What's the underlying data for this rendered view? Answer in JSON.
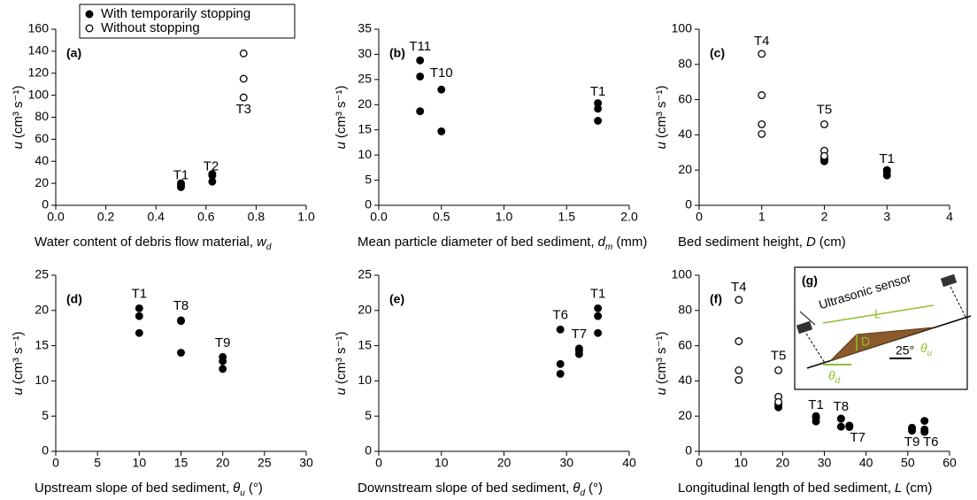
{
  "chart_data": [
    {
      "type": "scatter",
      "panel": "(a)",
      "xlabel": {
        "text": "Water content of debris flow material,",
        "var": "w",
        "sub": "d"
      },
      "ylabel": {
        "var": "u",
        "unit": "(cm³ s⁻¹)"
      },
      "xlim": [
        0,
        1
      ],
      "xticks": [
        {
          "value": 0,
          "label": "0.0"
        },
        {
          "value": 0.2,
          "label": "0.2"
        },
        {
          "value": 0.4,
          "label": "0.4"
        },
        {
          "value": 0.6,
          "label": "0.6"
        },
        {
          "value": 0.8,
          "label": "0.8"
        },
        {
          "value": 1,
          "label": "1.0"
        }
      ],
      "ylim": [
        0,
        160
      ],
      "yticks": [
        0,
        20,
        40,
        60,
        80,
        100,
        120,
        140,
        160
      ],
      "legend": "top",
      "series": [
        {
          "name": "With temporarily stopping",
          "marker": "filled",
          "color": "#000000",
          "x": [
            0.5,
            0.5,
            0.5,
            0.625,
            0.625,
            0.625
          ],
          "values": [
            20,
            18,
            16.5,
            28.5,
            27,
            21.5
          ]
        },
        {
          "name": "Without stopping",
          "marker": "open",
          "color": "#000000",
          "x": [
            0.75,
            0.75,
            0.75
          ],
          "values": [
            138,
            115,
            98
          ]
        }
      ],
      "annotations": [
        {
          "text": "T1",
          "x": 0.5,
          "y": 27
        },
        {
          "text": "T2",
          "x": 0.62,
          "y": 35
        },
        {
          "text": "T3",
          "x": 0.75,
          "y": 87
        }
      ]
    },
    {
      "type": "scatter",
      "panel": "(b)",
      "xlabel": {
        "text": "Mean particle diameter of bed sediment,",
        "var": "d",
        "sub": "m",
        "unit": "(mm)"
      },
      "ylabel": {
        "var": "u",
        "unit": "(cm³ s⁻¹)"
      },
      "xlim": [
        0,
        2
      ],
      "xticks": [
        {
          "value": 0,
          "label": "0.0"
        },
        {
          "value": 0.5,
          "label": "0.5"
        },
        {
          "value": 1,
          "label": "1.0"
        },
        {
          "value": 1.5,
          "label": "1.5"
        },
        {
          "value": 2,
          "label": "2.0"
        }
      ],
      "ylim": [
        0,
        35
      ],
      "yticks": [
        0,
        5,
        10,
        15,
        20,
        25,
        30,
        35
      ],
      "series": [
        {
          "marker": "filled",
          "color": "#000000",
          "x": [
            0.33,
            0.33,
            0.33,
            0.5,
            0.5,
            1.75,
            1.75,
            1.75
          ],
          "values": [
            28.8,
            25.6,
            18.7,
            23,
            14.7,
            20.3,
            19.2,
            16.8
          ]
        }
      ],
      "annotations": [
        {
          "text": "T11",
          "x": 0.33,
          "y": 31.5
        },
        {
          "text": "T10",
          "x": 0.5,
          "y": 26.2
        },
        {
          "text": "T1",
          "x": 1.75,
          "y": 22.5
        }
      ]
    },
    {
      "type": "scatter",
      "panel": "(c)",
      "xlabel": {
        "text": "Bed sediment height,",
        "var": "D",
        "unit": "(cm)"
      },
      "ylabel": {
        "var": "u",
        "unit": "(cm³ s⁻¹)"
      },
      "xlim": [
        0,
        4
      ],
      "xticks": [
        0,
        1,
        2,
        3,
        4
      ],
      "ylim": [
        0,
        100
      ],
      "yticks": [
        0,
        20,
        40,
        60,
        80,
        100
      ],
      "series": [
        {
          "marker": "filled",
          "color": "#000000",
          "x": [
            2,
            2,
            2,
            3,
            3,
            3
          ],
          "values": [
            27,
            26,
            25,
            20,
            19,
            17
          ]
        },
        {
          "marker": "open",
          "color": "#000000",
          "x": [
            1,
            1,
            1,
            1,
            2,
            2,
            2
          ],
          "values": [
            86,
            62.5,
            46,
            40.5,
            46,
            31,
            28
          ]
        }
      ],
      "annotations": [
        {
          "text": "T4",
          "x": 1,
          "y": 93
        },
        {
          "text": "T5",
          "x": 2,
          "y": 54
        },
        {
          "text": "T1",
          "x": 3,
          "y": 26
        }
      ]
    },
    {
      "type": "scatter",
      "panel": "(d)",
      "xlabel": {
        "text": "Upstream slope of bed sediment,",
        "var": "θ",
        "sub": "u",
        "unit": "(°)"
      },
      "ylabel": {
        "var": "u",
        "unit": "(cm³ s⁻¹)"
      },
      "xlim": [
        0,
        30
      ],
      "xticks": [
        0,
        5,
        10,
        15,
        20,
        25,
        30
      ],
      "ylim": [
        0,
        25
      ],
      "yticks": [
        0,
        5,
        10,
        15,
        20,
        25
      ],
      "series": [
        {
          "marker": "filled",
          "color": "#000000",
          "x": [
            10,
            10,
            10,
            15,
            15,
            15,
            20,
            20,
            20
          ],
          "values": [
            20.3,
            19.2,
            16.8,
            18.6,
            18.5,
            14,
            13.4,
            12.8,
            11.7
          ]
        }
      ],
      "annotations": [
        {
          "text": "T1",
          "x": 10,
          "y": 22.3
        },
        {
          "text": "T8",
          "x": 15,
          "y": 20.6
        },
        {
          "text": "T9",
          "x": 20,
          "y": 15.3
        }
      ]
    },
    {
      "type": "scatter",
      "panel": "(e)",
      "xlabel": {
        "text": "Downstream slope of bed sediment,",
        "var": "θ",
        "sub": "d",
        "unit": "(°)"
      },
      "ylabel": {
        "var": "u",
        "unit": "(cm³ s⁻¹)"
      },
      "xlim": [
        0,
        40
      ],
      "xticks": [
        0,
        10,
        20,
        30,
        40
      ],
      "ylim": [
        0,
        25
      ],
      "yticks": [
        0,
        5,
        10,
        15,
        20,
        25
      ],
      "series": [
        {
          "marker": "filled",
          "color": "#000000",
          "x": [
            29,
            29,
            29,
            32,
            32,
            32,
            35,
            35,
            35
          ],
          "values": [
            17.3,
            12.4,
            11,
            14.6,
            14.3,
            13.8,
            20.3,
            19.2,
            16.8
          ]
        }
      ],
      "annotations": [
        {
          "text": "T6",
          "x": 29,
          "y": 19.3
        },
        {
          "text": "T7",
          "x": 32,
          "y": 16.6
        },
        {
          "text": "T1",
          "x": 35,
          "y": 22.3
        }
      ]
    },
    {
      "type": "scatter",
      "panel": "(f)",
      "xlabel": {
        "text": "Longitudinal length of bed sediment,",
        "var": "L",
        "unit": "(cm)"
      },
      "ylabel": {
        "var": "u",
        "unit": "(cm³ s⁻¹)"
      },
      "xlim": [
        0,
        60
      ],
      "xticks": [
        0,
        10,
        20,
        30,
        40,
        50,
        60
      ],
      "ylim": [
        0,
        100
      ],
      "yticks": [
        0,
        20,
        40,
        60,
        80,
        100
      ],
      "series": [
        {
          "marker": "filled",
          "color": "#000000",
          "x": [
            19,
            19,
            19,
            28,
            28,
            28,
            34,
            34,
            34,
            36,
            36,
            36,
            51,
            51,
            51,
            54,
            54,
            54
          ],
          "values": [
            27,
            26,
            25,
            20,
            19,
            17,
            18.6,
            18.5,
            14,
            14.6,
            14.3,
            13.8,
            13.4,
            12.8,
            11.7,
            17.3,
            12.4,
            11
          ]
        },
        {
          "marker": "open",
          "color": "#000000",
          "x": [
            9.5,
            9.5,
            9.5,
            9.5,
            19,
            19,
            19
          ],
          "values": [
            86,
            62.5,
            46,
            40.5,
            46,
            31,
            28
          ]
        }
      ],
      "annotations": [
        {
          "text": "T4",
          "x": 9.5,
          "y": 93
        },
        {
          "text": "T5",
          "x": 19,
          "y": 54
        },
        {
          "text": "T1",
          "x": 28,
          "y": 26
        },
        {
          "text": "T8",
          "x": 34,
          "y": 25
        },
        {
          "text": "T7",
          "x": 38,
          "y": 7.5
        },
        {
          "text": "T9",
          "x": 51,
          "y": 5
        },
        {
          "text": "T6",
          "x": 55.5,
          "y": 5
        }
      ]
    }
  ],
  "diagram": {
    "label": "(g)",
    "sensor": "Ultrasonic sensor",
    "length": "L",
    "height": "D",
    "angle": "25°",
    "theta_u": {
      "var": "θ",
      "sub": "u"
    },
    "theta_d": {
      "var": "θ",
      "sub": "d"
    }
  }
}
